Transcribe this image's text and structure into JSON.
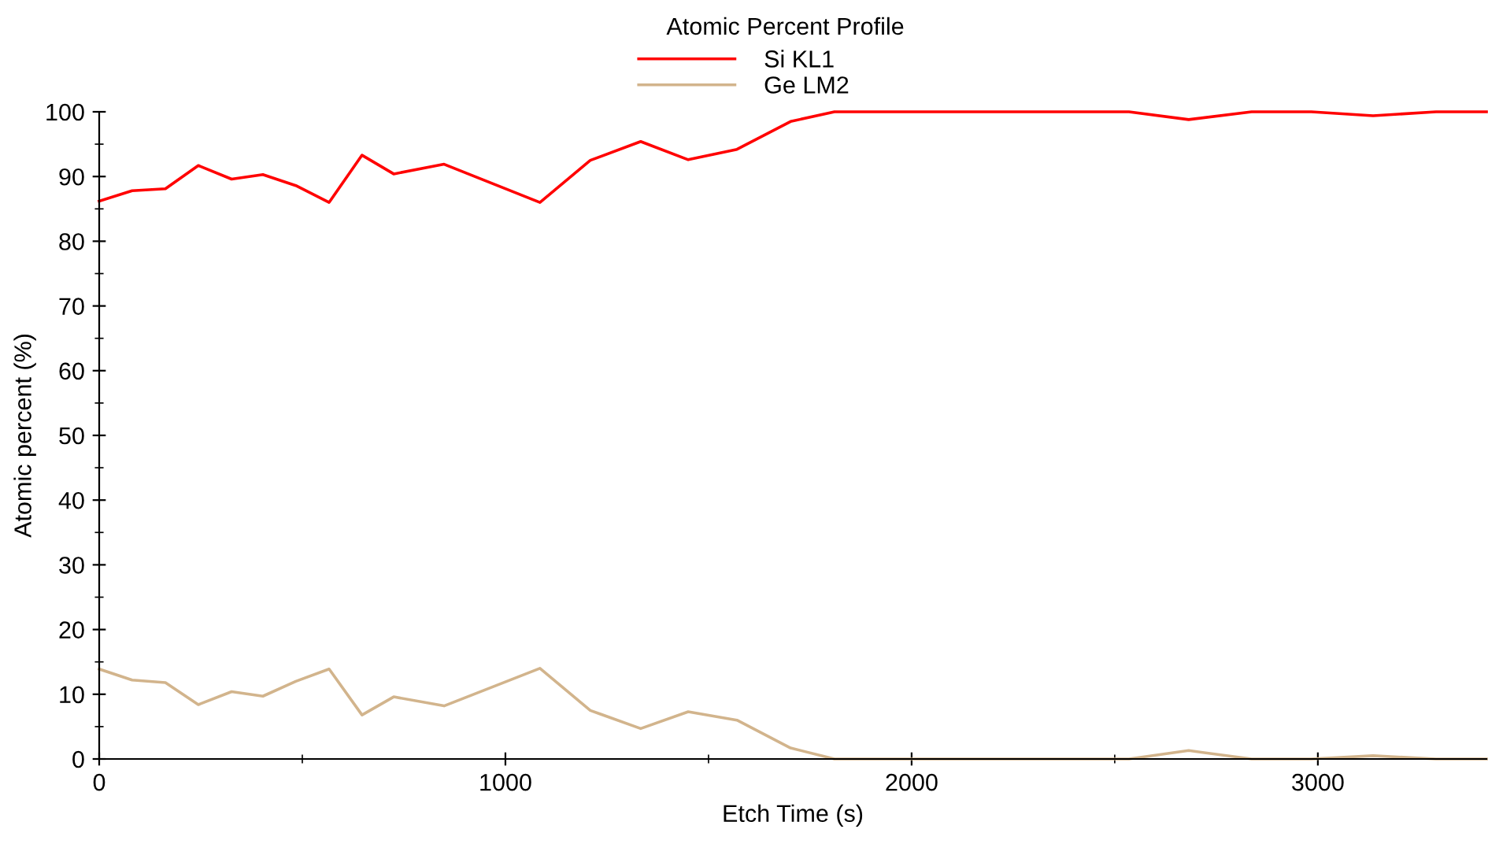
{
  "chart_data": {
    "type": "line",
    "title": "Atomic Percent Profile",
    "xlabel": "Etch Time (s)",
    "ylabel": "Atomic percent (%)",
    "x": [
      0,
      81,
      163,
      244,
      326,
      403,
      484,
      566,
      647,
      725,
      849,
      1085,
      1209,
      1333,
      1450,
      1570,
      1702,
      1810,
      2535,
      2682,
      2837,
      2984,
      3136,
      3291,
      3415
    ],
    "series": [
      {
        "name": "Si KL1",
        "color": "#ff0000",
        "values": [
          86.2,
          87.8,
          88.1,
          91.7,
          89.6,
          90.3,
          88.6,
          86.0,
          93.3,
          90.4,
          91.9,
          86.0,
          92.5,
          95.4,
          92.6,
          94.2,
          98.5,
          100,
          100,
          98.8,
          100,
          100,
          99.4,
          100,
          100
        ]
      },
      {
        "name": "Ge LM2",
        "color": "#d2b48c",
        "values": [
          13.9,
          12.2,
          11.8,
          8.4,
          10.4,
          9.7,
          12.0,
          13.9,
          6.8,
          9.6,
          8.2,
          14.0,
          7.5,
          4.7,
          7.3,
          6.0,
          1.7,
          0,
          0,
          1.3,
          0,
          0,
          0.5,
          0,
          0
        ]
      }
    ],
    "xlim": [
      0,
      3415
    ],
    "xticks": [
      0,
      1000,
      2000,
      3000
    ],
    "ylim": [
      0,
      100
    ],
    "yticks": [
      0,
      10,
      20,
      30,
      40,
      50,
      60,
      70,
      80,
      90,
      100
    ],
    "grid": false,
    "legend": "top",
    "marker": "none",
    "line_style": "solid"
  }
}
